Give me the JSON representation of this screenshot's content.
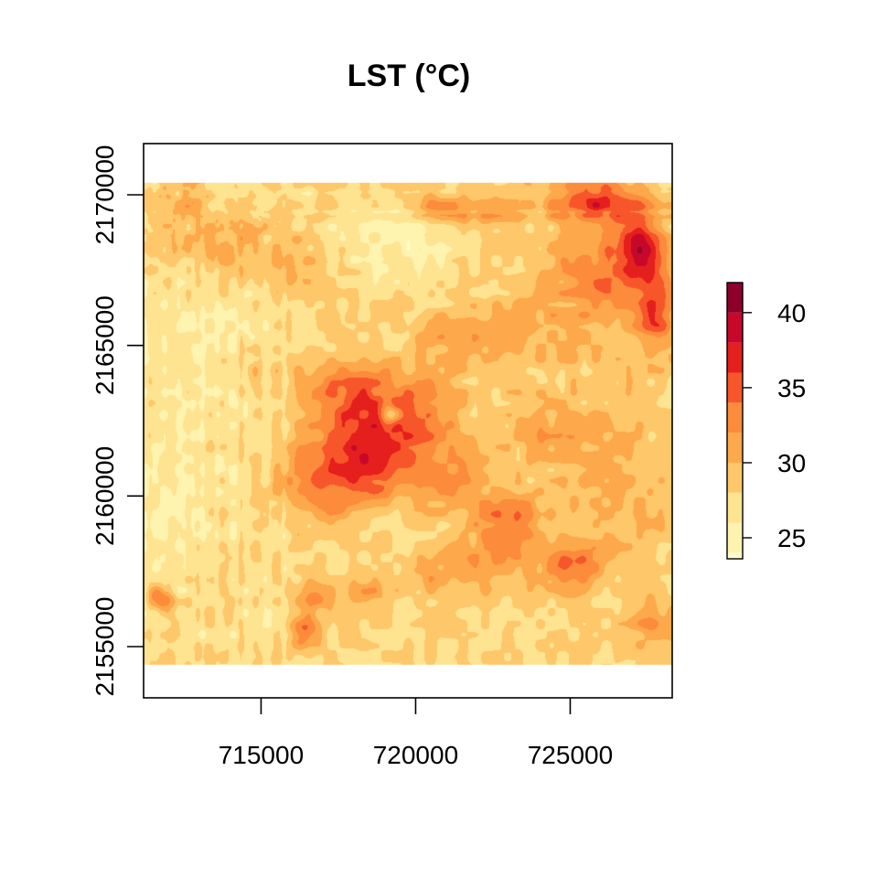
{
  "chart_data": {
    "type": "heatmap",
    "title": "LST (°C)",
    "xlabel": "",
    "ylabel": "",
    "xlim": [
      711200,
      728300
    ],
    "ylim": [
      2153300,
      2171700
    ],
    "raster_extent": {
      "x": [
        711200,
        728300
      ],
      "y": [
        2154400,
        2170400
      ]
    },
    "x_ticks": [
      {
        "value": 715000,
        "label": "715000"
      },
      {
        "value": 720000,
        "label": "720000"
      },
      {
        "value": 725000,
        "label": "725000"
      }
    ],
    "y_ticks": [
      {
        "value": 2155000,
        "label": "2155000"
      },
      {
        "value": 2160000,
        "label": "2160000"
      },
      {
        "value": 2165000,
        "label": "2165000"
      },
      {
        "value": 2170000,
        "label": "2170000"
      }
    ],
    "legend": {
      "placement": "right",
      "range": [
        23.6,
        42
      ],
      "ticks": [
        {
          "value": 25,
          "label": "25"
        },
        {
          "value": 30,
          "label": "30"
        },
        {
          "value": 35,
          "label": "35"
        },
        {
          "value": 40,
          "label": "40"
        }
      ],
      "breaks": [
        22,
        24,
        26,
        28,
        30,
        32,
        34,
        36,
        38,
        40,
        42
      ],
      "colors": [
        "#ffffcc",
        "#fff3b0",
        "#fee391",
        "#fec76a",
        "#fda84a",
        "#fc8b3c",
        "#f7562a",
        "#e51f1d",
        "#c7082a",
        "#8c0029"
      ]
    },
    "hotspots": [
      {
        "x": 718300,
        "y": 2161300,
        "sx": 1700,
        "sy": 1700,
        "amp": 9.0
      },
      {
        "x": 717700,
        "y": 2163500,
        "sx": 1500,
        "sy": 1000,
        "amp": 5.0
      },
      {
        "x": 720000,
        "y": 2162700,
        "sx": 1500,
        "sy": 1400,
        "amp": 5.0
      },
      {
        "x": 721200,
        "y": 2160700,
        "sx": 1300,
        "sy": 1000,
        "amp": 4.0
      },
      {
        "x": 716500,
        "y": 2160300,
        "sx": 1100,
        "sy": 1100,
        "amp": 3.5
      },
      {
        "x": 725800,
        "y": 2169800,
        "sx": 1400,
        "sy": 700,
        "amp": 8.5
      },
      {
        "x": 727300,
        "y": 2168200,
        "sx": 800,
        "sy": 1300,
        "amp": 8.0
      },
      {
        "x": 727800,
        "y": 2166000,
        "sx": 700,
        "sy": 1200,
        "amp": 6.0
      },
      {
        "x": 726200,
        "y": 2167800,
        "sx": 1600,
        "sy": 1600,
        "amp": 3.5
      },
      {
        "x": 723000,
        "y": 2159200,
        "sx": 1100,
        "sy": 900,
        "amp": 6.0
      },
      {
        "x": 725000,
        "y": 2157700,
        "sx": 1100,
        "sy": 800,
        "amp": 5.5
      },
      {
        "x": 722300,
        "y": 2157800,
        "sx": 1200,
        "sy": 900,
        "amp": 4.0
      },
      {
        "x": 722200,
        "y": 2169500,
        "sx": 1400,
        "sy": 600,
        "amp": 4.5
      },
      {
        "x": 725000,
        "y": 2166200,
        "sx": 2800,
        "sy": 2200,
        "amp": 2.5
      },
      {
        "x": 726500,
        "y": 2160500,
        "sx": 1800,
        "sy": 2600,
        "amp": 2.5
      },
      {
        "x": 720500,
        "y": 2169600,
        "sx": 700,
        "sy": 500,
        "amp": 4.0
      },
      {
        "x": 714200,
        "y": 2168400,
        "sx": 2200,
        "sy": 900,
        "amp": 2.5
      },
      {
        "x": 716000,
        "y": 2167300,
        "sx": 1200,
        "sy": 800,
        "amp": 3.0
      },
      {
        "x": 714800,
        "y": 2164300,
        "sx": 1200,
        "sy": 900,
        "amp": 3.0
      },
      {
        "x": 712500,
        "y": 2169700,
        "sx": 800,
        "sy": 700,
        "amp": 2.5
      },
      {
        "x": 711700,
        "y": 2156600,
        "sx": 400,
        "sy": 400,
        "amp": 6.5
      },
      {
        "x": 716400,
        "y": 2155500,
        "sx": 500,
        "sy": 500,
        "amp": 7.0
      },
      {
        "x": 716700,
        "y": 2156700,
        "sx": 600,
        "sy": 600,
        "amp": 4.0
      },
      {
        "x": 718500,
        "y": 2156800,
        "sx": 800,
        "sy": 500,
        "amp": 3.0
      },
      {
        "x": 720400,
        "y": 2157300,
        "sx": 1000,
        "sy": 600,
        "amp": 2.5
      },
      {
        "x": 727600,
        "y": 2155800,
        "sx": 700,
        "sy": 900,
        "amp": 4.0
      },
      {
        "x": 724200,
        "y": 2162200,
        "sx": 1300,
        "sy": 1000,
        "amp": 3.0
      },
      {
        "x": 721600,
        "y": 2165300,
        "sx": 1500,
        "sy": 800,
        "amp": 3.5
      }
    ],
    "coolspots": [
      {
        "x": 713600,
        "y": 2164700,
        "sx": 2200,
        "sy": 2000,
        "amp": 2.5
      },
      {
        "x": 712600,
        "y": 2160000,
        "sx": 1600,
        "sy": 2500,
        "amp": 2.0
      },
      {
        "x": 719600,
        "y": 2168300,
        "sx": 2400,
        "sy": 1100,
        "amp": 2.5
      },
      {
        "x": 718800,
        "y": 2159300,
        "sx": 1000,
        "sy": 700,
        "amp": 1.5
      },
      {
        "x": 714000,
        "y": 2155600,
        "sx": 1800,
        "sy": 800,
        "amp": 1.0
      },
      {
        "x": 719200,
        "y": 2162700,
        "sx": 300,
        "sy": 300,
        "amp": 6.0
      }
    ]
  }
}
